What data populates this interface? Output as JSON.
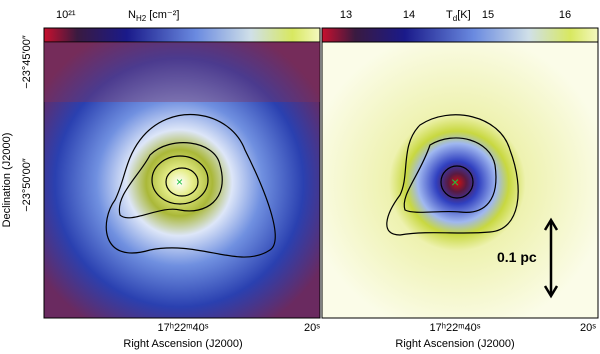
{
  "left_panel": {
    "colorbar": {
      "min_label": "10²¹",
      "quantity": "N",
      "subscript": "H2",
      "unit": "[cm⁻²]"
    },
    "x_tick_labels": [
      "17ʰ22ᵐ40ˢ",
      "20ˢ"
    ],
    "x_axis_label": "Right Ascension (J2000)",
    "y_tick_labels": [
      "−23°45′00″",
      "−23°50′00″"
    ],
    "y_axis_label": "Declination (J2000)"
  },
  "right_panel": {
    "colorbar": {
      "ticks": [
        "13",
        "14",
        "15",
        "16"
      ],
      "quantity": "T",
      "subscript": "d",
      "unit": "[K]"
    },
    "x_tick_labels": [
      "17ʰ22ᵐ40ˢ",
      "20ˢ"
    ],
    "x_axis_label": "Right Ascension (J2000)",
    "scale_bar_label": "0.1 pc"
  }
}
